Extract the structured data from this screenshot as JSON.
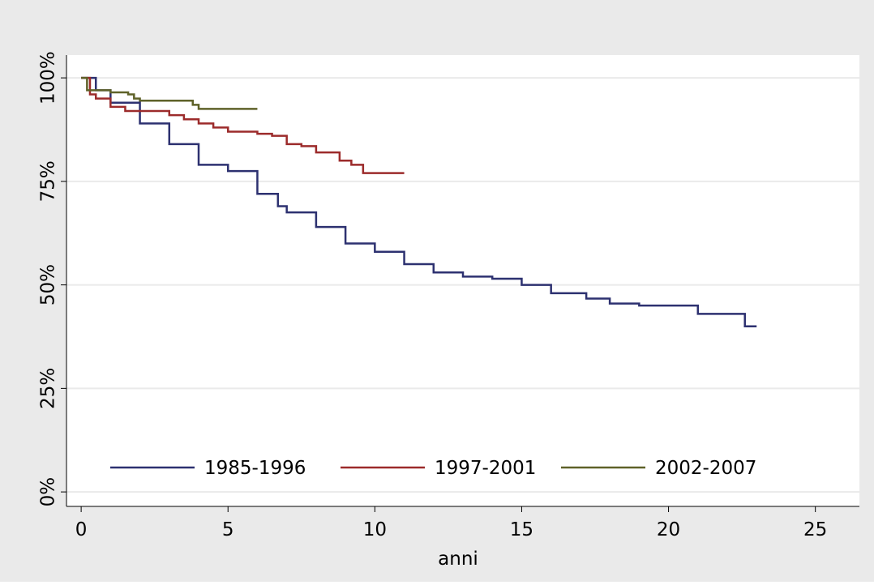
{
  "chart_data": {
    "type": "line",
    "step": "post",
    "x_label": "anni",
    "xlim": [
      -0.5,
      26.5
    ],
    "xticks": [
      0,
      5,
      10,
      15,
      20,
      25
    ],
    "ylim": [
      -3.5,
      105.5
    ],
    "yticks": [
      {
        "value": 0,
        "label": "0%"
      },
      {
        "value": 25,
        "label": "25%"
      },
      {
        "value": 50,
        "label": "50%"
      },
      {
        "value": 75,
        "label": "75%"
      },
      {
        "value": 100,
        "label": "100%"
      }
    ],
    "grid": true,
    "legend": "bottom",
    "series": [
      {
        "name": "1985-1996",
        "color": "#2d3170",
        "x": [
          0,
          0.5,
          1,
          2,
          3,
          4,
          5,
          6,
          6.7,
          7,
          8,
          9,
          10,
          11,
          12,
          13,
          14,
          15,
          16,
          17.2,
          18,
          19,
          20,
          21,
          22.6,
          23
        ],
        "values": [
          100,
          97,
          94,
          89,
          84,
          79,
          77.5,
          72,
          69,
          67.5,
          64,
          60,
          58,
          55,
          53,
          52,
          51.5,
          50,
          48,
          46.7,
          45.5,
          45,
          45,
          43,
          40,
          40
        ]
      },
      {
        "name": "1997-2001",
        "color": "#9c2b2b",
        "x": [
          0,
          0.3,
          0.5,
          1,
          1.5,
          2.2,
          3,
          3.5,
          4,
          4.5,
          5,
          6,
          6.5,
          7,
          7.5,
          8,
          8.8,
          9.2,
          9.6,
          11
        ],
        "values": [
          100,
          96,
          95,
          93,
          92,
          92,
          91,
          90,
          89,
          88,
          87,
          86.5,
          86,
          84,
          83.5,
          82,
          80,
          79,
          77,
          77
        ]
      },
      {
        "name": "2002-2007",
        "color": "#5f6229",
        "x": [
          0,
          0.2,
          1,
          1.6,
          1.8,
          2,
          3.8,
          4,
          6
        ],
        "values": [
          100,
          97,
          96.5,
          96,
          95,
          94.5,
          93.5,
          92.5,
          92.5
        ]
      }
    ]
  }
}
